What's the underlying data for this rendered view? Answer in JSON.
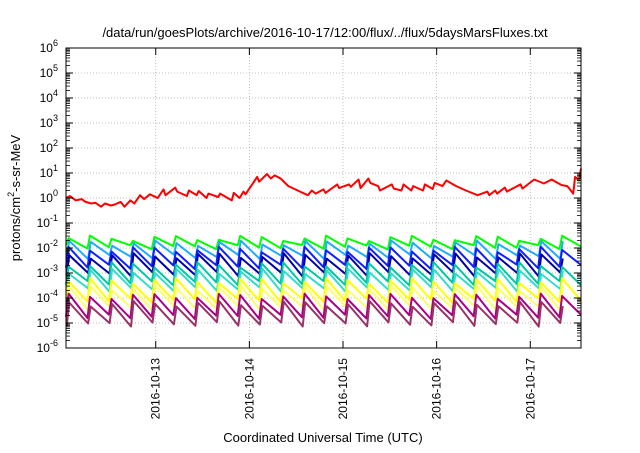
{
  "chart_data": {
    "type": "line",
    "title": "/data/run/goesPlots/archive/2016-10-17/12:00/flux/../flux/5daysMarsFluxes.txt",
    "xlabel": "Coordinated Universal Time (UTC)",
    "ylabel": {
      "prefix": "protons/cm",
      "superscript": "2",
      "suffix": "-s-sr-MeV"
    },
    "xlim": [
      "2016-10-12T01:00",
      "2016-10-17T13:00"
    ],
    "ylim": [
      1e-06,
      1000000.0
    ],
    "yscale": "log",
    "grid": true,
    "x_ticks": [
      {
        "date": "2016-10-13T00:00",
        "label": "2016-10-13"
      },
      {
        "date": "2016-10-14T00:00",
        "label": "2016-10-14"
      },
      {
        "date": "2016-10-15T00:00",
        "label": "2016-10-15"
      },
      {
        "date": "2016-10-16T00:00",
        "label": "2016-10-16"
      },
      {
        "date": "2016-10-17T00:00",
        "label": "2016-10-17"
      }
    ],
    "y_ticks": [
      {
        "base": "10",
        "exp": "-6",
        "value": 1e-06
      },
      {
        "base": "10",
        "exp": "-5",
        "value": 1e-05
      },
      {
        "base": "10",
        "exp": "-4",
        "value": 0.0001
      },
      {
        "base": "10",
        "exp": "-3",
        "value": 0.001
      },
      {
        "base": "10",
        "exp": "-2",
        "value": 0.01
      },
      {
        "base": "10",
        "exp": "-1",
        "value": 0.1
      },
      {
        "base": "10",
        "exp": "0",
        "value": 1
      },
      {
        "base": "10",
        "exp": "1",
        "value": 10
      },
      {
        "base": "10",
        "exp": "2",
        "value": 100
      },
      {
        "base": "10",
        "exp": "3",
        "value": 1000
      },
      {
        "base": "10",
        "exp": "4",
        "value": 10000
      },
      {
        "base": "10",
        "exp": "5",
        "value": 100000
      },
      {
        "base": "10",
        "exp": "6",
        "value": 1000000
      }
    ],
    "series": [
      {
        "color": "#ff0000",
        "x": [
          "2016-10-12T01:00",
          "2016-10-12T02:00",
          "2016-10-12T03:30",
          "2016-10-12T05:00",
          "2016-10-12T06:00",
          "2016-10-12T07:30",
          "2016-10-12T08:30",
          "2016-10-12T10:00",
          "2016-10-12T11:00",
          "2016-10-12T12:30",
          "2016-10-12T13:30",
          "2016-10-12T15:00",
          "2016-10-12T16:00",
          "2016-10-12T17:30",
          "2016-10-12T18:30",
          "2016-10-12T20:00",
          "2016-10-12T21:00",
          "2016-10-12T22:30",
          "2016-10-13T00:30",
          "2016-10-13T02:00",
          "2016-10-13T02:30",
          "2016-10-13T05:00",
          "2016-10-13T05:30",
          "2016-10-13T08:00",
          "2016-10-13T08:30",
          "2016-10-13T10:30",
          "2016-10-13T11:00",
          "2016-10-13T13:00",
          "2016-10-13T13:30",
          "2016-10-13T16:00",
          "2016-10-13T16:30",
          "2016-10-13T19:30",
          "2016-10-13T20:00",
          "2016-10-13T21:30",
          "2016-10-13T22:30",
          "2016-10-13T23:00",
          "2016-10-14T02:00",
          "2016-10-14T02:30",
          "2016-10-14T04:30",
          "2016-10-14T05:30",
          "2016-10-14T06:30",
          "2016-10-14T08:00",
          "2016-10-14T10:00",
          "2016-10-14T13:00",
          "2016-10-14T15:00",
          "2016-10-14T16:00",
          "2016-10-14T17:00",
          "2016-10-14T19:00",
          "2016-10-14T19:30",
          "2016-10-14T22:30",
          "2016-10-14T23:00",
          "2016-10-15T01:30",
          "2016-10-15T02:00",
          "2016-10-15T04:00",
          "2016-10-15T04:30",
          "2016-10-15T06:30",
          "2016-10-15T07:00",
          "2016-10-15T09:00",
          "2016-10-15T09:30",
          "2016-10-15T12:30",
          "2016-10-15T13:00",
          "2016-10-15T15:00",
          "2016-10-15T15:30",
          "2016-10-15T17:30",
          "2016-10-15T18:00",
          "2016-10-15T20:30",
          "2016-10-15T21:00",
          "2016-10-15T23:00",
          "2016-10-15T23:30",
          "2016-10-16T01:30",
          "2016-10-16T02:30",
          "2016-10-16T05:00",
          "2016-10-16T07:30",
          "2016-10-16T10:30",
          "2016-10-16T13:00",
          "2016-10-16T13:30",
          "2016-10-16T15:00",
          "2016-10-16T15:30",
          "2016-10-16T17:30",
          "2016-10-16T18:00",
          "2016-10-16T21:30",
          "2016-10-16T22:00",
          "2016-10-17T01:00",
          "2016-10-17T03:30",
          "2016-10-17T05:30",
          "2016-10-17T06:30",
          "2016-10-17T08:00",
          "2016-10-17T09:30",
          "2016-10-17T10:00",
          "2016-10-17T11:00",
          "2016-10-17T11:30",
          "2016-10-17T12:30",
          "2016-10-17T13:00"
        ],
        "y": [
          1.0,
          1.2,
          0.8,
          0.9,
          0.7,
          0.6,
          0.65,
          0.45,
          0.6,
          0.5,
          0.55,
          0.7,
          0.45,
          0.8,
          0.6,
          1.3,
          0.9,
          1.4,
          1.0,
          2.2,
          1.3,
          2.6,
          1.8,
          1.2,
          2.0,
          1.3,
          1.9,
          1.0,
          1.5,
          1.1,
          1.5,
          0.8,
          1.6,
          1.0,
          1.8,
          1.4,
          7.0,
          4.5,
          9.0,
          6.0,
          8.0,
          6.0,
          3.0,
          1.8,
          1.3,
          2.0,
          1.5,
          2.2,
          1.6,
          3.5,
          2.5,
          3.5,
          2.8,
          5.5,
          2.5,
          6.0,
          4.0,
          3.0,
          2.0,
          3.5,
          2.4,
          2.0,
          3.5,
          2.0,
          3.0,
          2.0,
          3.5,
          2.3,
          4.0,
          3.0,
          5.0,
          3.0,
          2.0,
          1.3,
          1.8,
          1.3,
          2.0,
          1.5,
          2.6,
          1.8,
          3.5,
          2.4,
          5.5,
          3.8,
          5.5,
          4.5,
          3.3,
          3.0,
          2.4,
          1.5,
          7.0,
          5.0,
          15.0
        ]
      }
    ],
    "periodic_series_note": "",
    "periodic_series": [
      {
        "color": "#00ff00",
        "peak": 0.025,
        "trough": 0.011
      },
      {
        "color": "#22aaff",
        "peak": 0.016,
        "trough": 0.0045
      },
      {
        "color": "#1020ff",
        "peak": 0.009,
        "trough": 0.0018
      },
      {
        "color": "#0000aa",
        "peak": 0.005,
        "trough": 0.0009
      },
      {
        "color": "#00c8a0",
        "peak": 0.0022,
        "trough": 0.0004
      },
      {
        "color": "#33ddcc",
        "peak": 0.0012,
        "trough": 0.00022
      },
      {
        "color": "#ffff00",
        "peak": 0.0005,
        "trough": 8e-05
      },
      {
        "color": "#ffff66",
        "peak": 0.00025,
        "trough": 4e-05
      },
      {
        "color": "#aa0088",
        "peak": 0.00012,
        "trough": 1.8e-05
      },
      {
        "color": "#993366",
        "peak": 6e-05,
        "trough": 9e-06
      }
    ],
    "periodic_cycle_hours": 5.5
  }
}
